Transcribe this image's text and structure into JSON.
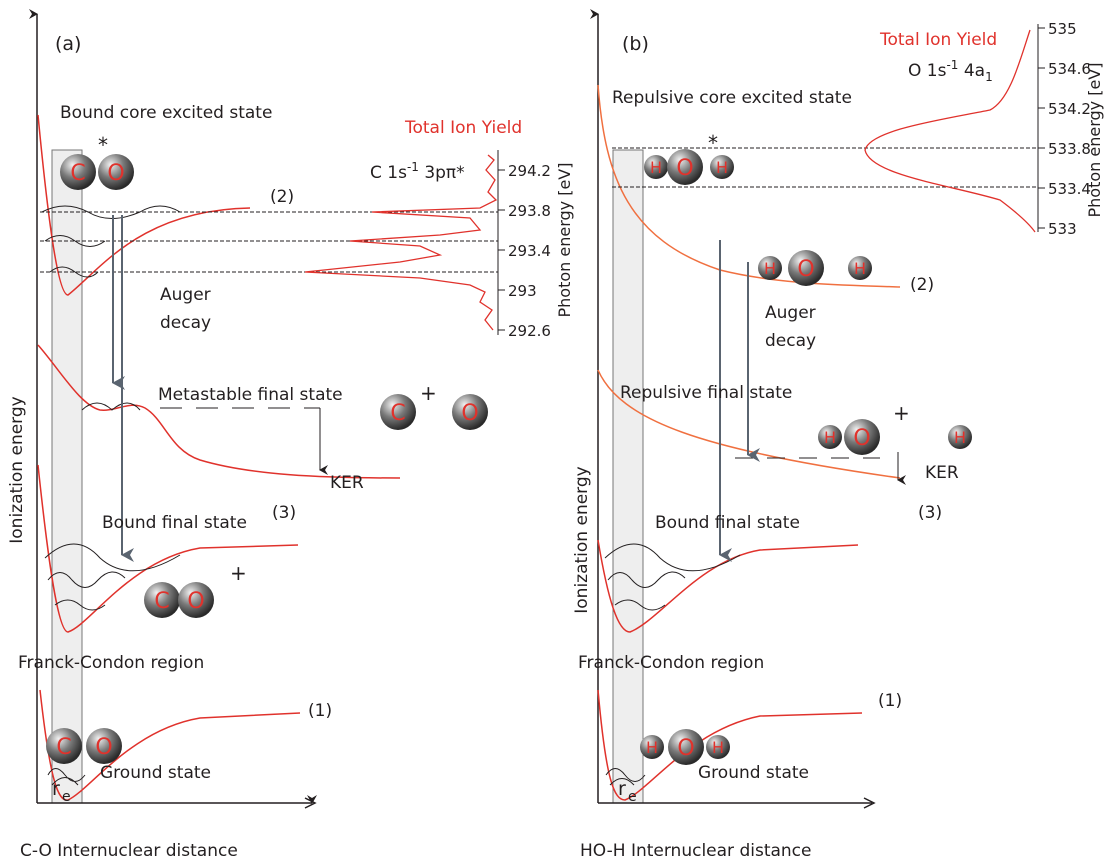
{
  "panels": [
    {
      "label": "(a)",
      "core_state": "Bound core excited state",
      "auger": [
        "Auger",
        "decay"
      ],
      "final_state": "Metastable final state",
      "ker": "KER",
      "bound_state": "Bound final state",
      "ground_state": "Ground state",
      "curve_labels": [
        "(1)",
        "(2)",
        "(3)"
      ],
      "franck_condon": "Franck-Condon region",
      "y_axis": "Ionization energy",
      "r": "r",
      "r_sub": "e",
      "x_axis": "C-O  Internuclear distance",
      "spectrum_title": "Total Ion Yield",
      "resonance": {
        "text": "C 1s",
        "sup": "-1",
        "rest": " 3pπ*"
      },
      "photon_axis": "Photon energy [eV]",
      "ylim": [
        292.6,
        294.2
      ],
      "yticks": [
        294.2,
        293.8,
        293.4,
        293,
        292.6
      ],
      "molecules": [
        {
          "atoms": [
            "C",
            "O"
          ],
          "charge": "*"
        },
        {
          "atoms": [
            "C"
          ],
          "charge": "+"
        },
        {
          "atoms": [
            "O"
          ]
        },
        {
          "atoms": [
            "C",
            "O"
          ],
          "charge": "+"
        },
        {
          "atoms": [
            "C",
            "O"
          ]
        }
      ]
    },
    {
      "label": "(b)",
      "core_state": "Repulsive core excited state",
      "auger": [
        "Auger",
        "decay"
      ],
      "final_state": "Repulsive final state",
      "ker": "KER",
      "bound_state": "Bound final state",
      "ground_state": "Ground state",
      "curve_labels": [
        "(1)",
        "(2)",
        "(3)"
      ],
      "franck_condon": "Franck-Condon region",
      "y_axis": "Ionization energy",
      "r": "r",
      "r_sub": "e",
      "x_axis": "HO-H  Internuclear distance",
      "spectrum_title": "Total Ion Yield",
      "resonance": {
        "text": "O 1s",
        "sup": "-1",
        "rest": " 4a",
        "sub": "1"
      },
      "photon_axis": "Photon energy [eV]",
      "ylim": [
        533,
        535
      ],
      "yticks": [
        535,
        534.6,
        534.2,
        533.8,
        533.4,
        533
      ],
      "molecules": [
        {
          "atoms": [
            "H",
            "O",
            "H"
          ],
          "charge": "*"
        },
        {
          "atoms": [
            "H",
            "O"
          ]
        },
        {
          "atoms": [
            "H"
          ]
        },
        {
          "atoms": [
            "H",
            "O"
          ],
          "charge": "+"
        },
        {
          "atoms": [
            "H"
          ]
        },
        {
          "atoms": [
            "H",
            "O",
            "H"
          ]
        }
      ]
    }
  ]
}
